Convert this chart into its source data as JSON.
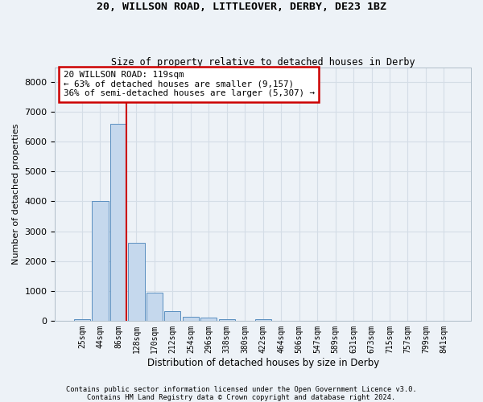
{
  "title1": "20, WILLSON ROAD, LITTLEOVER, DERBY, DE23 1BZ",
  "title2": "Size of property relative to detached houses in Derby",
  "xlabel": "Distribution of detached houses by size in Derby",
  "ylabel": "Number of detached properties",
  "bin_labels": [
    "25sqm",
    "44sqm",
    "86sqm",
    "128sqm",
    "170sqm",
    "212sqm",
    "254sqm",
    "296sqm",
    "338sqm",
    "380sqm",
    "422sqm",
    "464sqm",
    "506sqm",
    "547sqm",
    "589sqm",
    "631sqm",
    "673sqm",
    "715sqm",
    "757sqm",
    "799sqm",
    "841sqm"
  ],
  "bar_heights": [
    60,
    4000,
    6600,
    2620,
    950,
    320,
    130,
    100,
    60,
    0,
    60,
    0,
    0,
    0,
    0,
    0,
    0,
    0,
    0,
    0,
    0
  ],
  "bar_color": "#c5d8ed",
  "bar_edge_color": "#5a8fc0",
  "marker_bar_index": 2,
  "marker_line_color": "#cc0000",
  "annotation_text": "20 WILLSON ROAD: 119sqm\n← 63% of detached houses are smaller (9,157)\n36% of semi-detached houses are larger (5,307) →",
  "annotation_box_color": "#ffffff",
  "annotation_box_edge": "#cc0000",
  "ylim": [
    0,
    8500
  ],
  "yticks": [
    0,
    1000,
    2000,
    3000,
    4000,
    5000,
    6000,
    7000,
    8000
  ],
  "grid_color": "#d4dde6",
  "background_color": "#edf2f7",
  "footer1": "Contains HM Land Registry data © Crown copyright and database right 2024.",
  "footer2": "Contains public sector information licensed under the Open Government Licence v3.0."
}
